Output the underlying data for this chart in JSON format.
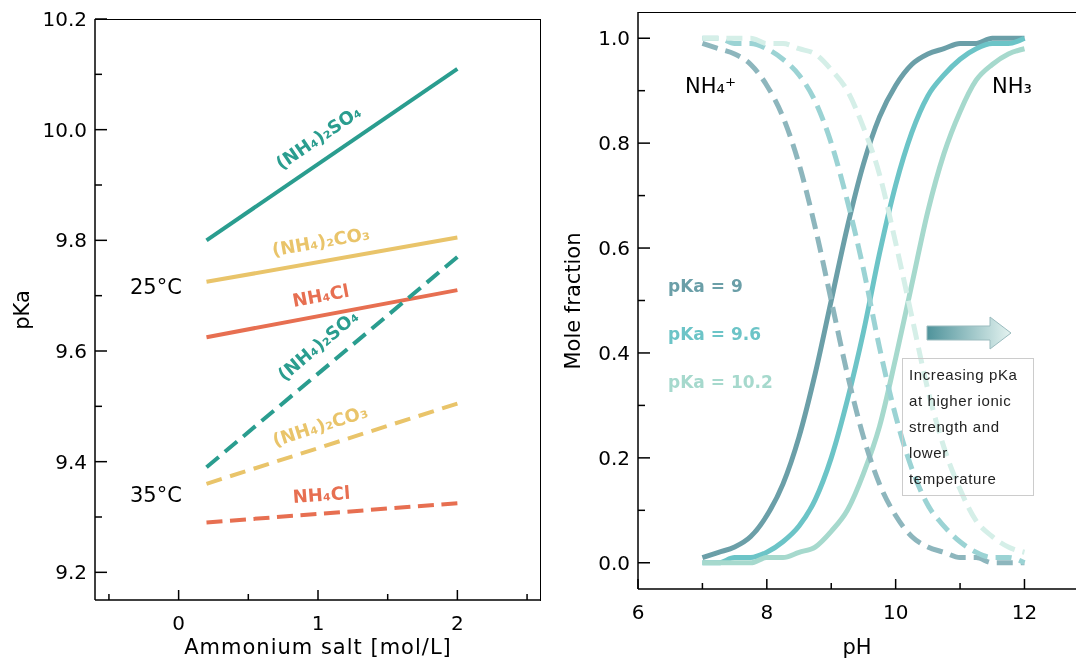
{
  "chart_data": [
    {
      "type": "line",
      "xlabel": "Ammonium salt [mol/L]",
      "ylabel": "pKa",
      "xlim": [
        -0.6,
        2.6
      ],
      "xticks": [
        {
          "value": -0.5,
          "label": null
        },
        0,
        {
          "value": 0.5,
          "label": null
        },
        1,
        {
          "value": 1.5,
          "label": null
        },
        2,
        {
          "value": 2.5,
          "label": null
        }
      ],
      "ylim": [
        9.15,
        10.2
      ],
      "yticks": [
        9.2,
        {
          "value": 9.3,
          "label": null
        },
        9.4,
        {
          "value": 9.5,
          "label": null
        },
        9.6,
        {
          "value": 9.7,
          "label": null
        },
        9.8,
        {
          "value": 9.9,
          "label": null
        },
        {
          "value": 10,
          "label": "10.0"
        },
        {
          "value": 10.1,
          "label": null
        },
        10.2
      ],
      "annotations": [
        "25°C",
        "35°C"
      ],
      "x": [
        0.2,
        2
      ],
      "series": [
        {
          "name": "(NH₄)₂SO₄",
          "color": "#2a9d8f",
          "values": [
            9.8,
            10.11
          ]
        },
        {
          "name": "(NH₄)₂CO₃",
          "color": "#e9c46a",
          "values": [
            9.725,
            9.805
          ]
        },
        {
          "name": "NH₄Cl",
          "color": "#e76f51",
          "values": [
            9.625,
            9.71
          ]
        },
        {
          "name": "(NH₄)₂SO₄",
          "color": "#2a9d8f",
          "line_style": "dashed",
          "values": [
            9.39,
            9.77
          ]
        },
        {
          "name": "(NH₄)₂CO₃",
          "color": "#e9c46a",
          "line_style": "dashed",
          "values": [
            9.36,
            9.505
          ]
        },
        {
          "name": "NH₄Cl",
          "color": "#e76f51",
          "line_style": "dashed",
          "values": [
            9.29,
            9.325
          ]
        }
      ]
    },
    {
      "type": "line",
      "xlabel": "pH",
      "ylabel": "Mole fraction",
      "xlim": [
        6,
        12.8
      ],
      "xticks": [
        6,
        {
          "value": 7,
          "label": null
        },
        8,
        {
          "value": 9,
          "label": null
        },
        10,
        {
          "value": 11,
          "label": null
        },
        12
      ],
      "ylim": [
        -0.05,
        1.05
      ],
      "yticks": [
        {
          "value": 0,
          "label": "0.0"
        },
        {
          "value": 0.1,
          "label": null
        },
        0.2,
        {
          "value": 0.3,
          "label": null
        },
        0.4,
        {
          "value": 0.5,
          "label": null
        },
        0.6,
        {
          "value": 0.7,
          "label": null
        },
        0.8,
        {
          "value": 0.9,
          "label": null
        },
        {
          "value": 1,
          "label": "1.0"
        }
      ],
      "annotations": [
        "NH₄⁺",
        "NH₃",
        "Increasing pKa at higher ionic strength and lower temperature"
      ],
      "x": [
        7,
        7.25,
        7.5,
        7.75,
        8,
        8.25,
        8.5,
        8.75,
        9,
        9.25,
        9.5,
        9.75,
        10,
        10.25,
        10.5,
        10.75,
        11,
        11.25,
        11.5,
        11.75,
        12
      ],
      "series": [
        {
          "name": "pKa = 9",
          "color": "#6b9fa8",
          "values": [
            0.01,
            0.02,
            0.03,
            0.05,
            0.09,
            0.15,
            0.24,
            0.36,
            0.5,
            0.64,
            0.76,
            0.85,
            0.91,
            0.95,
            0.97,
            0.98,
            0.99,
            0.99,
            1,
            1,
            1
          ]
        },
        {
          "name": "pKa = 9.6",
          "color": "#6cc4c7",
          "values": [
            0,
            0,
            0.01,
            0.01,
            0.02,
            0.04,
            0.07,
            0.12,
            0.2,
            0.31,
            0.44,
            0.59,
            0.72,
            0.82,
            0.89,
            0.93,
            0.96,
            0.98,
            0.99,
            0.99,
            1
          ]
        },
        {
          "name": "pKa = 10.2",
          "color": "#a6d9cd",
          "values": [
            0,
            0,
            0,
            0,
            0.01,
            0.01,
            0.02,
            0.03,
            0.06,
            0.1,
            0.17,
            0.26,
            0.39,
            0.53,
            0.67,
            0.78,
            0.86,
            0.92,
            0.95,
            0.97,
            0.98
          ]
        },
        {
          "color": "#8db6bd",
          "line_style": "dashed",
          "values": [
            0.99,
            0.98,
            0.97,
            0.95,
            0.91,
            0.85,
            0.76,
            0.64,
            0.5,
            0.36,
            0.24,
            0.15,
            0.09,
            0.05,
            0.03,
            0.02,
            0.01,
            0.01,
            0,
            0,
            0
          ]
        },
        {
          "color": "#9bd3d4",
          "line_style": "dashed",
          "values": [
            1,
            1,
            0.99,
            0.99,
            0.98,
            0.96,
            0.93,
            0.88,
            0.8,
            0.69,
            0.56,
            0.41,
            0.28,
            0.18,
            0.11,
            0.07,
            0.04,
            0.02,
            0.01,
            0.01,
            0
          ]
        },
        {
          "color": "#d5efe8",
          "line_style": "dashed",
          "values": [
            1,
            1,
            1,
            1,
            0.99,
            0.99,
            0.98,
            0.97,
            0.94,
            0.9,
            0.83,
            0.74,
            0.61,
            0.47,
            0.33,
            0.22,
            0.14,
            0.08,
            0.05,
            0.03,
            0.02
          ]
        }
      ]
    }
  ]
}
